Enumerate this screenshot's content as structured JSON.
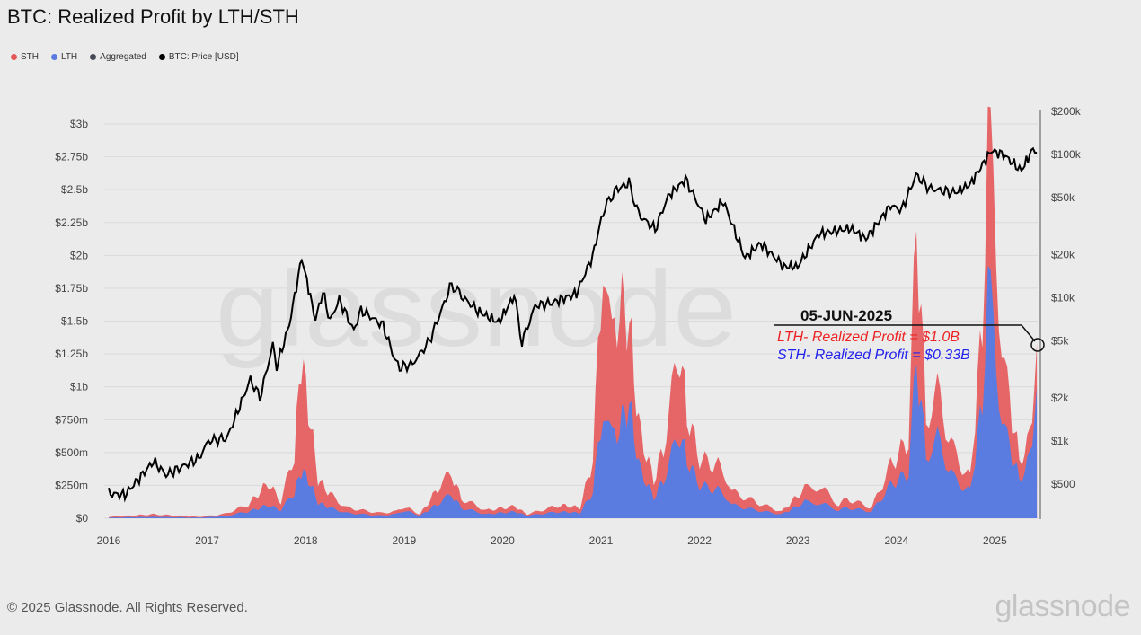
{
  "title": "BTC: Realized Profit by LTH/STH",
  "legend": [
    {
      "label": "STH",
      "color": "#e5585a"
    },
    {
      "label": "LTH",
      "color": "#5a7be0"
    },
    {
      "label": "Aggregated",
      "color": "#444a55",
      "disabled": true
    },
    {
      "label": "BTC: Price [USD]",
      "color": "#000000"
    }
  ],
  "footer": "© 2025 Glassnode. All Rights Reserved.",
  "logo": "glassnode",
  "watermark": "glassnode",
  "annotation": {
    "date": "05-JUN-2025",
    "line1": "LTH- Realized Profit = $1.0B",
    "line2": "STH- Realized Profit = $0.33B",
    "line1_color": "#ee2222",
    "line2_color": "#2222ee"
  },
  "chart_data": {
    "type": "area",
    "title": "BTC: Realized Profit by LTH/STH",
    "x_ticks": [
      "2016",
      "2017",
      "2018",
      "2019",
      "2020",
      "2021",
      "2022",
      "2023",
      "2024",
      "2025"
    ],
    "y_left_ticks": [
      "$0",
      "$250m",
      "$500m",
      "$750m",
      "$1b",
      "$1.25b",
      "$1.5b",
      "$1.75b",
      "$2b",
      "$2.25b",
      "$2.5b",
      "$2.75b",
      "$3b"
    ],
    "y_left_range_usd_b": [
      0,
      3
    ],
    "y_right_ticks": [
      "$500",
      "$1k",
      "$2k",
      "$5k",
      "$10k",
      "$20k",
      "$50k",
      "$100k",
      "$200k"
    ],
    "y_right_scale": "log",
    "grid": true,
    "legend_placement": "top-left",
    "series_profit": {
      "columns": [
        "date",
        "total_usd_b",
        "lth_usd_b"
      ],
      "rows": [
        [
          "2016-01-01",
          0.01,
          0.005
        ],
        [
          "2016-06-15",
          0.03,
          0.01
        ],
        [
          "2016-12-01",
          0.01,
          0.005
        ],
        [
          "2017-03-01",
          0.03,
          0.015
        ],
        [
          "2017-06-01",
          0.1,
          0.05
        ],
        [
          "2017-08-15",
          0.27,
          0.1
        ],
        [
          "2017-10-01",
          0.12,
          0.06
        ],
        [
          "2017-11-20",
          0.5,
          0.2
        ],
        [
          "2017-12-15",
          1.23,
          0.36
        ],
        [
          "2018-01-10",
          0.85,
          0.3
        ],
        [
          "2018-02-15",
          0.3,
          0.12
        ],
        [
          "2018-04-01",
          0.18,
          0.08
        ],
        [
          "2018-06-01",
          0.08,
          0.04
        ],
        [
          "2018-10-01",
          0.04,
          0.02
        ],
        [
          "2018-12-01",
          0.05,
          0.03
        ],
        [
          "2019-01-01",
          0.09,
          0.06
        ],
        [
          "2019-03-01",
          0.03,
          0.02
        ],
        [
          "2019-05-15",
          0.25,
          0.12
        ],
        [
          "2019-06-25",
          0.34,
          0.18
        ],
        [
          "2019-08-01",
          0.15,
          0.08
        ],
        [
          "2019-11-01",
          0.06,
          0.03
        ],
        [
          "2020-02-15",
          0.09,
          0.05
        ],
        [
          "2020-04-01",
          0.03,
          0.02
        ],
        [
          "2020-08-01",
          0.1,
          0.05
        ],
        [
          "2020-10-15",
          0.08,
          0.04
        ],
        [
          "2020-12-01",
          0.45,
          0.2
        ],
        [
          "2021-01-08",
          2.05,
          0.85
        ],
        [
          "2021-02-10",
          1.3,
          0.6
        ],
        [
          "2021-03-10",
          1.65,
          0.7
        ],
        [
          "2021-04-15",
          1.5,
          0.88
        ],
        [
          "2021-05-20",
          0.7,
          0.4
        ],
        [
          "2021-07-15",
          0.28,
          0.15
        ],
        [
          "2021-08-20",
          0.55,
          0.3
        ],
        [
          "2021-10-20",
          1.3,
          0.65
        ],
        [
          "2021-11-15",
          0.8,
          0.45
        ],
        [
          "2022-01-01",
          0.45,
          0.25
        ],
        [
          "2022-03-30",
          0.38,
          0.2
        ],
        [
          "2022-05-01",
          0.2,
          0.1
        ],
        [
          "2022-08-01",
          0.12,
          0.06
        ],
        [
          "2022-11-01",
          0.05,
          0.03
        ],
        [
          "2023-01-25",
          0.22,
          0.12
        ],
        [
          "2023-03-20",
          0.25,
          0.12
        ],
        [
          "2023-06-01",
          0.1,
          0.06
        ],
        [
          "2023-07-01",
          0.15,
          0.08
        ],
        [
          "2023-10-01",
          0.08,
          0.05
        ],
        [
          "2023-12-10",
          0.4,
          0.25
        ],
        [
          "2024-02-15",
          0.6,
          0.35
        ],
        [
          "2024-03-15",
          2.25,
          1.2
        ],
        [
          "2024-04-20",
          0.8,
          0.5
        ],
        [
          "2024-06-01",
          0.95,
          0.6
        ],
        [
          "2024-08-01",
          0.5,
          0.3
        ],
        [
          "2024-10-01",
          0.3,
          0.2
        ],
        [
          "2024-11-15",
          1.5,
          0.9
        ],
        [
          "2024-12-05",
          3.1,
          1.9
        ],
        [
          "2025-01-05",
          1.9,
          1.1
        ],
        [
          "2025-02-15",
          1.0,
          0.6
        ],
        [
          "2025-04-01",
          0.45,
          0.3
        ],
        [
          "2025-05-10",
          0.6,
          0.45
        ],
        [
          "2025-06-05",
          1.33,
          1.0
        ]
      ]
    },
    "series_price": {
      "name": "BTC: Price [USD]",
      "columns": [
        "date",
        "price_usd"
      ],
      "rows": [
        [
          "2016-01-01",
          430
        ],
        [
          "2016-03-01",
          420
        ],
        [
          "2016-06-15",
          720
        ],
        [
          "2016-08-01",
          580
        ],
        [
          "2016-12-01",
          760
        ],
        [
          "2017-01-05",
          1000
        ],
        [
          "2017-03-15",
          1050
        ],
        [
          "2017-06-10",
          2700
        ],
        [
          "2017-07-15",
          2000
        ],
        [
          "2017-09-01",
          4700
        ],
        [
          "2017-09-15",
          3300
        ],
        [
          "2017-11-01",
          6500
        ],
        [
          "2017-12-17",
          19000
        ],
        [
          "2018-02-06",
          7000
        ],
        [
          "2018-03-05",
          11000
        ],
        [
          "2018-04-01",
          6900
        ],
        [
          "2018-05-05",
          9700
        ],
        [
          "2018-06-28",
          5900
        ],
        [
          "2018-07-25",
          8200
        ],
        [
          "2018-10-15",
          6400
        ],
        [
          "2018-11-25",
          3800
        ],
        [
          "2018-12-15",
          3250
        ],
        [
          "2019-02-01",
          3450
        ],
        [
          "2019-04-05",
          5000
        ],
        [
          "2019-06-26",
          12500
        ],
        [
          "2019-08-01",
          10300
        ],
        [
          "2019-10-01",
          8100
        ],
        [
          "2019-12-17",
          6700
        ],
        [
          "2020-02-13",
          10300
        ],
        [
          "2020-03-13",
          4900
        ],
        [
          "2020-05-01",
          8800
        ],
        [
          "2020-07-01",
          9200
        ],
        [
          "2020-10-01",
          10700
        ],
        [
          "2020-11-30",
          19500
        ],
        [
          "2021-01-08",
          40000
        ],
        [
          "2021-02-20",
          56000
        ],
        [
          "2021-04-14",
          63000
        ],
        [
          "2021-05-20",
          38000
        ],
        [
          "2021-07-20",
          30000
        ],
        [
          "2021-09-06",
          51000
        ],
        [
          "2021-11-10",
          67000
        ],
        [
          "2022-01-24",
          35000
        ],
        [
          "2022-03-30",
          47000
        ],
        [
          "2022-06-18",
          19000
        ],
        [
          "2022-08-15",
          24000
        ],
        [
          "2022-11-10",
          16500
        ],
        [
          "2022-12-30",
          16500
        ],
        [
          "2023-03-20",
          28000
        ],
        [
          "2023-07-15",
          30500
        ],
        [
          "2023-09-10",
          25800
        ],
        [
          "2023-12-10",
          44000
        ],
        [
          "2024-01-20",
          41000
        ],
        [
          "2024-03-14",
          72000
        ],
        [
          "2024-05-01",
          58000
        ],
        [
          "2024-08-05",
          54000
        ],
        [
          "2024-10-01",
          62000
        ],
        [
          "2024-12-17",
          106000
        ],
        [
          "2025-02-01",
          100000
        ],
        [
          "2025-04-08",
          77000
        ],
        [
          "2025-05-22",
          110000
        ],
        [
          "2025-06-05",
          103000
        ]
      ]
    }
  }
}
